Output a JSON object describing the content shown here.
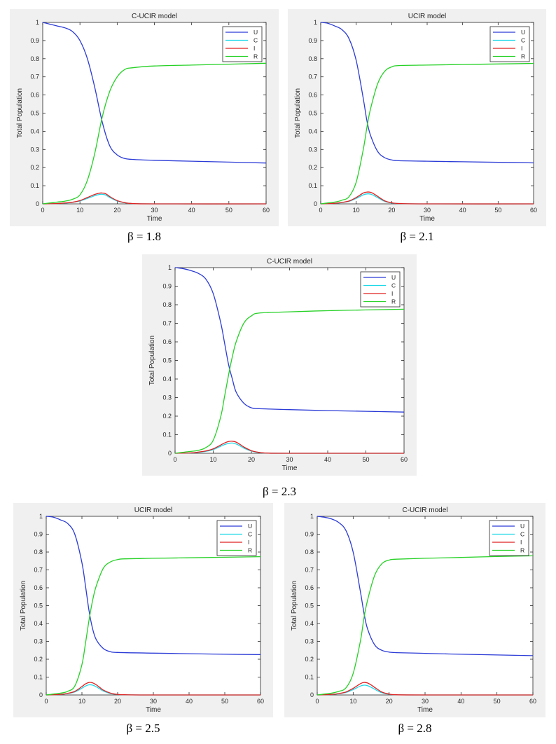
{
  "colors": {
    "U": "#2b3bd6",
    "C": "#1fd8e8",
    "I": "#e02020",
    "R": "#26d126"
  },
  "chart_data": [
    {
      "type": "line",
      "title": "C-UCIR model",
      "caption": "β = 1.8",
      "xlabel": "Time",
      "ylabel": "Total Population",
      "xlim": [
        0,
        60
      ],
      "ylim": [
        0,
        1
      ],
      "xticks": [
        "0",
        "10",
        "20",
        "30",
        "40",
        "50",
        "60"
      ],
      "yticks": [
        "0",
        "0.1",
        "0.2",
        "0.3",
        "0.4",
        "0.5",
        "0.6",
        "0.7",
        "0.8",
        "0.9",
        "1"
      ],
      "grid": false,
      "legend_position": "top-right",
      "legend": [
        "U",
        "C",
        "I",
        "R"
      ],
      "series": [
        {
          "name": "U",
          "x": [
            0,
            2,
            4,
            6,
            8,
            10,
            12,
            14,
            16,
            18,
            20,
            22,
            24,
            30,
            40,
            50,
            60
          ],
          "y": [
            1.0,
            0.99,
            0.98,
            0.97,
            0.95,
            0.9,
            0.8,
            0.64,
            0.45,
            0.32,
            0.27,
            0.25,
            0.245,
            0.24,
            0.235,
            0.23,
            0.225
          ]
        },
        {
          "name": "C",
          "x": [
            0,
            4,
            6,
            8,
            10,
            12,
            14,
            15,
            16,
            17,
            18,
            20,
            22,
            24,
            30,
            60
          ],
          "y": [
            0,
            0.002,
            0.004,
            0.008,
            0.016,
            0.03,
            0.045,
            0.051,
            0.053,
            0.048,
            0.035,
            0.016,
            0.006,
            0.002,
            0,
            0
          ]
        },
        {
          "name": "I",
          "x": [
            0,
            4,
            6,
            8,
            10,
            12,
            14,
            15,
            16,
            17,
            18,
            20,
            22,
            24,
            30,
            60
          ],
          "y": [
            0,
            0.002,
            0.005,
            0.009,
            0.018,
            0.035,
            0.052,
            0.058,
            0.06,
            0.055,
            0.04,
            0.018,
            0.007,
            0.002,
            0,
            0
          ]
        },
        {
          "name": "R",
          "x": [
            0,
            2,
            4,
            6,
            8,
            10,
            12,
            14,
            16,
            18,
            20,
            22,
            24,
            30,
            40,
            50,
            60
          ],
          "y": [
            0,
            0.005,
            0.01,
            0.015,
            0.025,
            0.05,
            0.13,
            0.28,
            0.48,
            0.62,
            0.7,
            0.74,
            0.75,
            0.76,
            0.765,
            0.77,
            0.775
          ]
        }
      ]
    },
    {
      "type": "line",
      "title": "UCIR model",
      "caption": "β = 2.1",
      "xlabel": "Time",
      "ylabel": "Total Population",
      "xlim": [
        0,
        60
      ],
      "ylim": [
        0,
        1
      ],
      "xticks": [
        "0",
        "10",
        "20",
        "30",
        "40",
        "50",
        "60"
      ],
      "yticks": [
        "0",
        "0.1",
        "0.2",
        "0.3",
        "0.4",
        "0.5",
        "0.6",
        "0.7",
        "0.8",
        "0.9",
        "1"
      ],
      "grid": false,
      "legend_position": "top-right",
      "legend": [
        "U",
        "C",
        "I",
        "R"
      ],
      "series": [
        {
          "name": "U",
          "x": [
            0,
            2,
            4,
            6,
            8,
            10,
            12,
            13,
            14,
            16,
            18,
            20,
            22,
            30,
            40,
            50,
            60
          ],
          "y": [
            1.0,
            0.995,
            0.98,
            0.96,
            0.91,
            0.79,
            0.58,
            0.46,
            0.38,
            0.29,
            0.255,
            0.242,
            0.238,
            0.235,
            0.232,
            0.229,
            0.226
          ]
        },
        {
          "name": "C",
          "x": [
            0,
            4,
            6,
            8,
            10,
            12,
            13,
            14,
            15,
            16,
            18,
            20,
            22,
            30,
            60
          ],
          "y": [
            0,
            0.003,
            0.007,
            0.014,
            0.03,
            0.05,
            0.055,
            0.054,
            0.046,
            0.035,
            0.014,
            0.005,
            0.002,
            0,
            0
          ]
        },
        {
          "name": "I",
          "x": [
            0,
            4,
            6,
            8,
            10,
            12,
            13,
            14,
            15,
            16,
            18,
            20,
            22,
            30,
            60
          ],
          "y": [
            0,
            0.003,
            0.008,
            0.016,
            0.035,
            0.06,
            0.065,
            0.064,
            0.055,
            0.042,
            0.017,
            0.006,
            0.002,
            0,
            0
          ]
        },
        {
          "name": "R",
          "x": [
            0,
            2,
            4,
            6,
            8,
            10,
            12,
            13,
            14,
            16,
            18,
            20,
            22,
            30,
            40,
            50,
            60
          ],
          "y": [
            0,
            0.005,
            0.01,
            0.02,
            0.04,
            0.12,
            0.3,
            0.42,
            0.52,
            0.66,
            0.73,
            0.755,
            0.762,
            0.765,
            0.768,
            0.771,
            0.774
          ]
        }
      ]
    },
    {
      "type": "line",
      "title": "C-UCIR model",
      "caption": "β = 2.3",
      "xlabel": "Time",
      "ylabel": "Total Population",
      "xlim": [
        0,
        60
      ],
      "ylim": [
        0,
        1
      ],
      "xticks": [
        "0",
        "10",
        "20",
        "30",
        "40",
        "50",
        "60"
      ],
      "yticks": [
        "0",
        "0.1",
        "0.2",
        "0.3",
        "0.4",
        "0.5",
        "0.6",
        "0.7",
        "0.8",
        "0.9",
        "1"
      ],
      "grid": false,
      "legend_position": "top-right",
      "legend": [
        "U",
        "C",
        "I",
        "R"
      ],
      "series": [
        {
          "name": "U",
          "x": [
            0,
            2,
            4,
            6,
            8,
            10,
            12,
            13,
            14,
            15,
            16,
            18,
            20,
            22,
            30,
            40,
            50,
            60
          ],
          "y": [
            1.0,
            0.995,
            0.985,
            0.97,
            0.94,
            0.86,
            0.7,
            0.59,
            0.48,
            0.4,
            0.33,
            0.27,
            0.245,
            0.24,
            0.235,
            0.23,
            0.226,
            0.222
          ]
        },
        {
          "name": "C",
          "x": [
            0,
            4,
            6,
            8,
            10,
            12,
            13,
            14,
            15,
            16,
            17,
            18,
            20,
            22,
            24,
            30,
            60
          ],
          "y": [
            0,
            0.002,
            0.005,
            0.01,
            0.02,
            0.038,
            0.047,
            0.053,
            0.055,
            0.05,
            0.04,
            0.028,
            0.012,
            0.004,
            0.001,
            0,
            0
          ]
        },
        {
          "name": "I",
          "x": [
            0,
            4,
            6,
            8,
            10,
            12,
            13,
            14,
            15,
            16,
            17,
            18,
            20,
            22,
            24,
            30,
            60
          ],
          "y": [
            0,
            0.002,
            0.006,
            0.012,
            0.024,
            0.045,
            0.056,
            0.063,
            0.065,
            0.06,
            0.048,
            0.034,
            0.014,
            0.005,
            0.001,
            0,
            0
          ]
        },
        {
          "name": "R",
          "x": [
            0,
            2,
            4,
            6,
            8,
            10,
            12,
            13,
            14,
            15,
            16,
            18,
            20,
            22,
            30,
            40,
            50,
            60
          ],
          "y": [
            0,
            0.005,
            0.01,
            0.015,
            0.03,
            0.07,
            0.2,
            0.31,
            0.42,
            0.52,
            0.6,
            0.7,
            0.74,
            0.755,
            0.762,
            0.768,
            0.772,
            0.776
          ]
        }
      ]
    },
    {
      "type": "line",
      "title": "UCIR model",
      "caption": "β = 2.5",
      "xlabel": "Time",
      "ylabel": "Total Population",
      "xlim": [
        0,
        60
      ],
      "ylim": [
        0,
        1
      ],
      "xticks": [
        "0",
        "10",
        "20",
        "30",
        "40",
        "50",
        "60"
      ],
      "yticks": [
        "0",
        "0.1",
        "0.2",
        "0.3",
        "0.4",
        "0.5",
        "0.6",
        "0.7",
        "0.8",
        "0.9",
        "1"
      ],
      "grid": false,
      "legend_position": "top-right",
      "legend": [
        "U",
        "C",
        "I",
        "R"
      ],
      "series": [
        {
          "name": "U",
          "x": [
            0,
            2,
            4,
            6,
            8,
            10,
            11,
            12,
            13,
            14,
            16,
            18,
            20,
            30,
            40,
            50,
            60
          ],
          "y": [
            1.0,
            0.995,
            0.98,
            0.96,
            0.9,
            0.74,
            0.61,
            0.47,
            0.37,
            0.31,
            0.26,
            0.242,
            0.238,
            0.234,
            0.231,
            0.228,
            0.226
          ]
        },
        {
          "name": "C",
          "x": [
            0,
            4,
            6,
            8,
            10,
            11,
            12,
            13,
            14,
            15,
            16,
            18,
            20,
            22,
            30,
            60
          ],
          "y": [
            0,
            0.003,
            0.008,
            0.017,
            0.038,
            0.05,
            0.057,
            0.055,
            0.046,
            0.034,
            0.022,
            0.008,
            0.003,
            0.001,
            0,
            0
          ]
        },
        {
          "name": "I",
          "x": [
            0,
            4,
            6,
            8,
            10,
            11,
            12,
            13,
            14,
            15,
            16,
            18,
            20,
            22,
            30,
            60
          ],
          "y": [
            0,
            0.003,
            0.009,
            0.02,
            0.047,
            0.062,
            0.07,
            0.068,
            0.057,
            0.042,
            0.027,
            0.01,
            0.003,
            0.001,
            0,
            0
          ]
        },
        {
          "name": "R",
          "x": [
            0,
            2,
            4,
            6,
            8,
            10,
            11,
            12,
            13,
            14,
            16,
            18,
            20,
            22,
            30,
            40,
            50,
            60
          ],
          "y": [
            0,
            0.005,
            0.01,
            0.02,
            0.05,
            0.17,
            0.29,
            0.42,
            0.53,
            0.61,
            0.71,
            0.745,
            0.758,
            0.762,
            0.765,
            0.768,
            0.771,
            0.774
          ]
        }
      ]
    },
    {
      "type": "line",
      "title": "C-UCIR model",
      "caption": "β = 2.8",
      "xlabel": "Time",
      "ylabel": "Total Population",
      "xlim": [
        0,
        60
      ],
      "ylim": [
        0,
        1
      ],
      "xticks": [
        "0",
        "10",
        "20",
        "30",
        "40",
        "50",
        "60"
      ],
      "yticks": [
        "0",
        "0.1",
        "0.2",
        "0.3",
        "0.4",
        "0.5",
        "0.6",
        "0.7",
        "0.8",
        "0.9",
        "1"
      ],
      "grid": false,
      "legend_position": "top-right",
      "legend": [
        "U",
        "C",
        "I",
        "R"
      ],
      "series": [
        {
          "name": "U",
          "x": [
            0,
            2,
            4,
            6,
            8,
            10,
            12,
            13,
            14,
            16,
            18,
            20,
            22,
            30,
            40,
            50,
            60
          ],
          "y": [
            1.0,
            0.995,
            0.985,
            0.965,
            0.92,
            0.8,
            0.58,
            0.46,
            0.37,
            0.28,
            0.25,
            0.24,
            0.237,
            0.233,
            0.228,
            0.224,
            0.22
          ]
        },
        {
          "name": "C",
          "x": [
            0,
            4,
            6,
            8,
            10,
            12,
            13,
            14,
            15,
            16,
            18,
            20,
            22,
            30,
            60
          ],
          "y": [
            0,
            0.003,
            0.007,
            0.014,
            0.03,
            0.05,
            0.055,
            0.052,
            0.043,
            0.032,
            0.012,
            0.004,
            0.001,
            0,
            0
          ]
        },
        {
          "name": "I",
          "x": [
            0,
            4,
            6,
            8,
            10,
            12,
            13,
            14,
            15,
            16,
            18,
            20,
            22,
            30,
            60
          ],
          "y": [
            0,
            0.003,
            0.008,
            0.017,
            0.037,
            0.063,
            0.07,
            0.067,
            0.056,
            0.042,
            0.016,
            0.005,
            0.001,
            0,
            0
          ]
        },
        {
          "name": "R",
          "x": [
            0,
            2,
            4,
            6,
            8,
            10,
            12,
            13,
            14,
            16,
            18,
            20,
            22,
            30,
            40,
            50,
            60
          ],
          "y": [
            0,
            0.005,
            0.01,
            0.02,
            0.04,
            0.12,
            0.3,
            0.43,
            0.53,
            0.67,
            0.735,
            0.755,
            0.76,
            0.765,
            0.77,
            0.775,
            0.779
          ]
        }
      ]
    }
  ]
}
